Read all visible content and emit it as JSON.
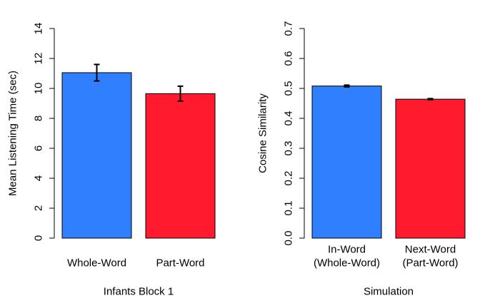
{
  "chart_data": [
    {
      "type": "bar",
      "title": "",
      "xlabel": "Infants Block 1",
      "ylabel": "Mean Listening Time (sec)",
      "ylim": [
        0,
        14
      ],
      "yticks": [
        0,
        2,
        4,
        6,
        8,
        10,
        12,
        14
      ],
      "ytick_labels": [
        "0",
        "2",
        "4",
        "6",
        "8",
        "10",
        "12",
        "14"
      ],
      "categories": [
        [
          "Whole-Word"
        ],
        [
          "Part-Word"
        ]
      ],
      "values": [
        11.05,
        9.65
      ],
      "errors": [
        0.55,
        0.5
      ],
      "colors": [
        "#2f7fff",
        "#ff1a2e"
      ]
    },
    {
      "type": "bar",
      "title": "",
      "xlabel": "Simulation",
      "ylabel": "Cosine Similarity",
      "ylim": [
        0,
        0.7
      ],
      "yticks": [
        0,
        0.1,
        0.2,
        0.3,
        0.4,
        0.5,
        0.6,
        0.7
      ],
      "ytick_labels": [
        "0.0",
        "0.1",
        "0.2",
        "0.3",
        "0.4",
        "0.5",
        "0.6",
        "0.7"
      ],
      "categories": [
        [
          "In-Word",
          "(Whole-Word)"
        ],
        [
          "Next-Word",
          "(Part-Word)"
        ]
      ],
      "values": [
        0.508,
        0.464
      ],
      "errors": [
        0.003,
        0.002
      ],
      "colors": [
        "#2f7fff",
        "#ff1a2e"
      ]
    }
  ]
}
